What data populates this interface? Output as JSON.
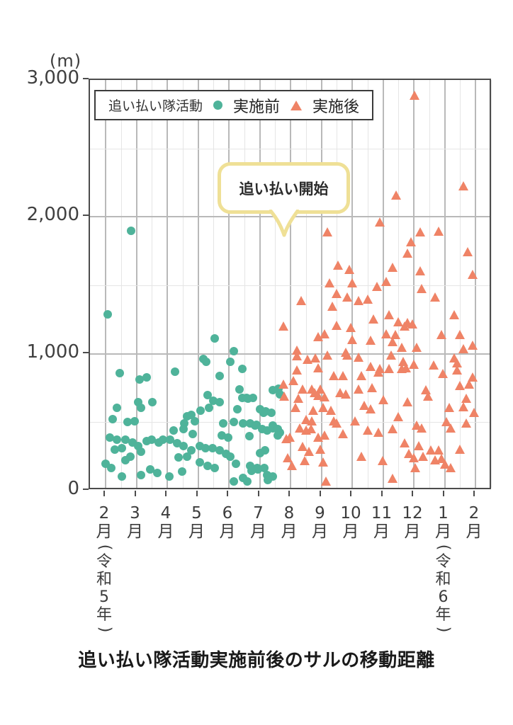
{
  "page": {
    "title": "追い払い隊活動実施前後のサルの移動距離"
  },
  "chart_data": {
    "type": "scatter",
    "unit_label": "(m)",
    "ylim": [
      0,
      3000
    ],
    "y_ticks": [
      0,
      1000,
      2000,
      3000
    ],
    "y_tick_labels": [
      "0",
      "1,000",
      "2,000",
      "3,000"
    ],
    "y_minor_ticks": [
      500,
      1500,
      2500
    ],
    "grid": "on",
    "x_tick_labels": [
      "2月",
      "3月",
      "4月",
      "5月",
      "6月",
      "7月",
      "8月",
      "9月",
      "10月",
      "11月",
      "12月",
      "1月",
      "2月"
    ],
    "x_year_labels": [
      {
        "index": 0,
        "label": "（令和5年）",
        "chars": [
          "令",
          "和",
          "5",
          "年"
        ]
      },
      {
        "index": 11,
        "label": "（令和6年）",
        "chars": [
          "令",
          "和",
          "6",
          "年"
        ]
      }
    ],
    "legend": {
      "position": "top-left-inside",
      "title": "追い払い隊活動",
      "series": [
        {
          "name": "実施前",
          "marker": "circle",
          "color": "#4fb39a"
        },
        {
          "name": "実施後",
          "marker": "triangle",
          "color": "#ef8366"
        }
      ]
    },
    "annotation": {
      "text": "追い払い開始",
      "points_to_month_index": 6
    },
    "series": [
      {
        "name": "実施前",
        "marker": "circle",
        "color": "#4fb39a",
        "points": [
          [
            0.07,
            1290
          ],
          [
            0.83,
            1900
          ],
          [
            3.54,
            1110
          ],
          [
            4.16,
            1020
          ],
          [
            3.18,
            960
          ],
          [
            3.26,
            940
          ],
          [
            0.46,
            860
          ],
          [
            1.1,
            810
          ],
          [
            1.33,
            830
          ],
          [
            2.25,
            870
          ],
          [
            4.05,
            940
          ],
          [
            4.43,
            890
          ],
          [
            3.7,
            840
          ],
          [
            4.35,
            740
          ],
          [
            5.43,
            735
          ],
          [
            5.6,
            745
          ],
          [
            5.66,
            705
          ],
          [
            3.3,
            700
          ],
          [
            4.58,
            680
          ],
          [
            4.78,
            680
          ],
          [
            4.62,
            670
          ],
          [
            4.44,
            680
          ],
          [
            1.06,
            645
          ],
          [
            1.52,
            645
          ],
          [
            3.5,
            655
          ],
          [
            3.7,
            645
          ],
          [
            0.37,
            605
          ],
          [
            1.15,
            605
          ],
          [
            3.36,
            605
          ],
          [
            4.28,
            595
          ],
          [
            5.0,
            595
          ],
          [
            3.08,
            585
          ],
          [
            5.2,
            580
          ],
          [
            5.38,
            570
          ],
          [
            5.13,
            570
          ],
          [
            2.78,
            555
          ],
          [
            2.64,
            545
          ],
          [
            0.23,
            520
          ],
          [
            0.71,
            500
          ],
          [
            0.94,
            505
          ],
          [
            2.9,
            505
          ],
          [
            2.55,
            490
          ],
          [
            3.82,
            490
          ],
          [
            4.16,
            500
          ],
          [
            4.47,
            490
          ],
          [
            4.7,
            490
          ],
          [
            4.85,
            475
          ],
          [
            4.9,
            480
          ],
          [
            5.43,
            475
          ],
          [
            5.08,
            450
          ],
          [
            5.24,
            440
          ],
          [
            5.43,
            455
          ],
          [
            5.58,
            450
          ],
          [
            5.66,
            425
          ],
          [
            2.2,
            440
          ],
          [
            2.53,
            450
          ],
          [
            2.82,
            415
          ],
          [
            3.77,
            405
          ],
          [
            5.58,
            405
          ],
          [
            4.67,
            400
          ],
          [
            3.98,
            390
          ],
          [
            0.14,
            390
          ],
          [
            0.37,
            375
          ],
          [
            0.64,
            370
          ],
          [
            0.87,
            350
          ],
          [
            1.33,
            360
          ],
          [
            1.49,
            370
          ],
          [
            1.72,
            350
          ],
          [
            1.86,
            375
          ],
          [
            2.1,
            370
          ],
          [
            2.32,
            345
          ],
          [
            1.06,
            325
          ],
          [
            2.53,
            325
          ],
          [
            3.06,
            325
          ],
          [
            0.53,
            310
          ],
          [
            0.3,
            300
          ],
          [
            3.24,
            310
          ],
          [
            3.47,
            310
          ],
          [
            3.7,
            295
          ],
          [
            2.78,
            295
          ],
          [
            5.17,
            295
          ],
          [
            1.15,
            285
          ],
          [
            3.9,
            270
          ],
          [
            5.0,
            275
          ],
          [
            0.8,
            250
          ],
          [
            4.05,
            250
          ],
          [
            2.64,
            250
          ],
          [
            2.37,
            245
          ],
          [
            0.64,
            220
          ],
          [
            3.06,
            205
          ],
          [
            0.0,
            195
          ],
          [
            4.23,
            195
          ],
          [
            3.3,
            180
          ],
          [
            4.7,
            180
          ],
          [
            0.18,
            165
          ],
          [
            3.54,
            165
          ],
          [
            4.93,
            165
          ],
          [
            5.15,
            165
          ],
          [
            1.45,
            155
          ],
          [
            4.94,
            155
          ],
          [
            2.48,
            140
          ],
          [
            4.74,
            145
          ],
          [
            1.68,
            130
          ],
          [
            1.15,
            115
          ],
          [
            5.24,
            115
          ],
          [
            0.53,
            105
          ],
          [
            2.07,
            105
          ],
          [
            5.43,
            105
          ],
          [
            4.47,
            95
          ],
          [
            5.27,
            80
          ],
          [
            4.16,
            65
          ],
          [
            4.6,
            65
          ]
        ]
      },
      {
        "name": "実施後",
        "marker": "triangle",
        "color": "#ef8366",
        "points": [
          [
            10.02,
            2870
          ],
          [
            11.6,
            2210
          ],
          [
            9.43,
            2140
          ],
          [
            8.9,
            1945
          ],
          [
            7.2,
            1870
          ],
          [
            10.2,
            1870
          ],
          [
            10.8,
            1880
          ],
          [
            9.9,
            1800
          ],
          [
            9.8,
            1715
          ],
          [
            11.75,
            1730
          ],
          [
            7.54,
            1630
          ],
          [
            9.3,
            1615
          ],
          [
            10.2,
            1590
          ],
          [
            7.9,
            1600
          ],
          [
            11.9,
            1560
          ],
          [
            7.27,
            1500
          ],
          [
            8.0,
            1500
          ],
          [
            8.8,
            1475
          ],
          [
            9.1,
            1510
          ],
          [
            10.25,
            1460
          ],
          [
            7.5,
            1420
          ],
          [
            7.85,
            1395
          ],
          [
            10.7,
            1395
          ],
          [
            8.2,
            1370
          ],
          [
            8.5,
            1380
          ],
          [
            6.35,
            1370
          ],
          [
            7.35,
            1330
          ],
          [
            11.3,
            1265
          ],
          [
            9.2,
            1265
          ],
          [
            8.7,
            1235
          ],
          [
            9.5,
            1215
          ],
          [
            9.8,
            1210
          ],
          [
            9.95,
            1200
          ],
          [
            5.77,
            1185
          ],
          [
            9.7,
            1185
          ],
          [
            7.5,
            1190
          ],
          [
            7.95,
            1175
          ],
          [
            7.1,
            1130
          ],
          [
            9.1,
            1130
          ],
          [
            9.4,
            1120
          ],
          [
            10.9,
            1120
          ],
          [
            11.5,
            1120
          ],
          [
            6.9,
            1105
          ],
          [
            8.0,
            1085
          ],
          [
            8.6,
            1080
          ],
          [
            9.3,
            1070
          ],
          [
            11.9,
            1045
          ],
          [
            9.6,
            1030
          ],
          [
            10.1,
            1030
          ],
          [
            11.6,
            1020
          ],
          [
            6.2,
            1010
          ],
          [
            7.2,
            975
          ],
          [
            7.85,
            975
          ],
          [
            9.26,
            975
          ],
          [
            6.2,
            965
          ],
          [
            8.2,
            955
          ],
          [
            11.3,
            950
          ],
          [
            7.8,
            995
          ],
          [
            6.55,
            940
          ],
          [
            6.8,
            950
          ],
          [
            9.65,
            925
          ],
          [
            11.4,
            915
          ],
          [
            10.0,
            905
          ],
          [
            10.65,
            900
          ],
          [
            8.6,
            890
          ],
          [
            6.9,
            880
          ],
          [
            9.75,
            880
          ],
          [
            8.9,
            875
          ],
          [
            9.2,
            875
          ],
          [
            9.6,
            875
          ],
          [
            6.2,
            865
          ],
          [
            11.4,
            865
          ],
          [
            8.85,
            850
          ],
          [
            10.95,
            840
          ],
          [
            7.4,
            820
          ],
          [
            7.7,
            825
          ],
          [
            8.3,
            825
          ],
          [
            11.9,
            810
          ],
          [
            6.1,
            785
          ],
          [
            5.77,
            760
          ],
          [
            11.8,
            760
          ],
          [
            11.5,
            750
          ],
          [
            8.65,
            735
          ],
          [
            6.4,
            725
          ],
          [
            6.7,
            725
          ],
          [
            8.2,
            725
          ],
          [
            6.97,
            725
          ],
          [
            10.4,
            720
          ],
          [
            7.6,
            700
          ],
          [
            6.78,
            700
          ],
          [
            7.8,
            690
          ],
          [
            6.9,
            680
          ],
          [
            5.8,
            670
          ],
          [
            10.45,
            670
          ],
          [
            7.1,
            665
          ],
          [
            6.25,
            655
          ],
          [
            11.7,
            655
          ],
          [
            9.0,
            645
          ],
          [
            9.8,
            630
          ],
          [
            8.4,
            605
          ],
          [
            11.6,
            595
          ],
          [
            6.15,
            590
          ],
          [
            7.05,
            590
          ],
          [
            11.15,
            590
          ],
          [
            8.6,
            580
          ],
          [
            7.3,
            570
          ],
          [
            6.74,
            570
          ],
          [
            11.95,
            555
          ],
          [
            9.5,
            525
          ],
          [
            6.5,
            500
          ],
          [
            6.7,
            490
          ],
          [
            7.4,
            490
          ],
          [
            8.1,
            490
          ],
          [
            11.05,
            485
          ],
          [
            7.5,
            475
          ],
          [
            11.7,
            475
          ],
          [
            10.1,
            460
          ],
          [
            6.3,
            440
          ],
          [
            10.25,
            440
          ],
          [
            6.67,
            435
          ],
          [
            9.3,
            435
          ],
          [
            11.2,
            440
          ],
          [
            6.5,
            425
          ],
          [
            8.5,
            425
          ],
          [
            8.85,
            410
          ],
          [
            7.7,
            400
          ],
          [
            7.1,
            390
          ],
          [
            5.98,
            375
          ],
          [
            6.9,
            370
          ],
          [
            5.86,
            360
          ],
          [
            9.7,
            330
          ],
          [
            6.4,
            305
          ],
          [
            10.15,
            310
          ],
          [
            6.97,
            285
          ],
          [
            10.55,
            280
          ],
          [
            10.8,
            280
          ],
          [
            11.5,
            285
          ],
          [
            6.6,
            270
          ],
          [
            9.85,
            255
          ],
          [
            5.9,
            225
          ],
          [
            10.3,
            235
          ],
          [
            10.0,
            225
          ],
          [
            8.3,
            235
          ],
          [
            10.7,
            205
          ],
          [
            10.9,
            215
          ],
          [
            6.45,
            200
          ],
          [
            8.98,
            200
          ],
          [
            6.05,
            165
          ],
          [
            7.05,
            190
          ],
          [
            11.0,
            175
          ],
          [
            10.05,
            150
          ],
          [
            11.2,
            150
          ],
          [
            9.3,
            70
          ],
          [
            7.15,
            50
          ]
        ]
      }
    ]
  }
}
